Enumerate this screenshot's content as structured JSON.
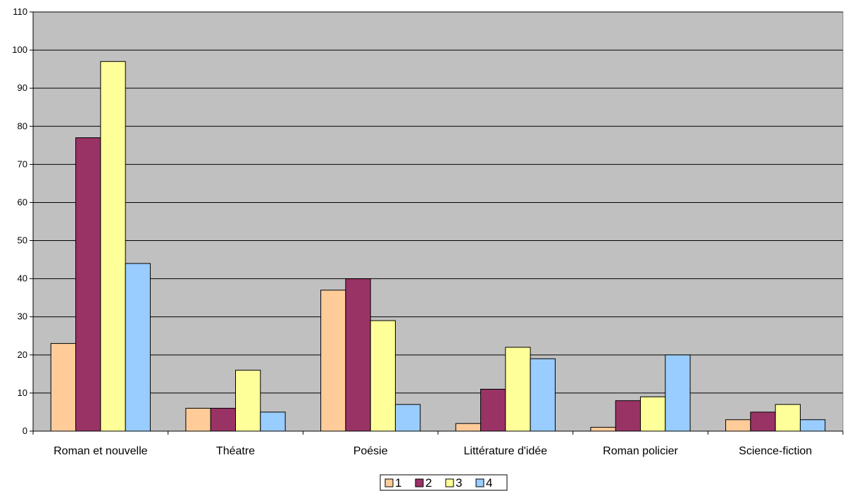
{
  "chart_data": {
    "type": "bar",
    "title": "",
    "xlabel": "",
    "ylabel": "",
    "ylim": [
      0,
      110
    ],
    "yticks": [
      0,
      10,
      20,
      30,
      40,
      50,
      60,
      70,
      80,
      90,
      100,
      110
    ],
    "grid": true,
    "legend_position": "bottom",
    "plot_background": "#c0c0c0",
    "categories": [
      "Roman et nouvelle",
      "Théatre",
      "Poésie",
      "Littérature d'idée",
      "Roman policier",
      "Science-fiction"
    ],
    "series": [
      {
        "name": "1",
        "color": "#ffcc99",
        "values": [
          23,
          6,
          37,
          2,
          1,
          3
        ]
      },
      {
        "name": "2",
        "color": "#993366",
        "values": [
          77,
          6,
          40,
          11,
          8,
          5
        ]
      },
      {
        "name": "3",
        "color": "#ffff99",
        "values": [
          97,
          16,
          29,
          22,
          9,
          7
        ]
      },
      {
        "name": "4",
        "color": "#99ccff",
        "values": [
          44,
          5,
          7,
          19,
          20,
          3
        ]
      }
    ]
  }
}
